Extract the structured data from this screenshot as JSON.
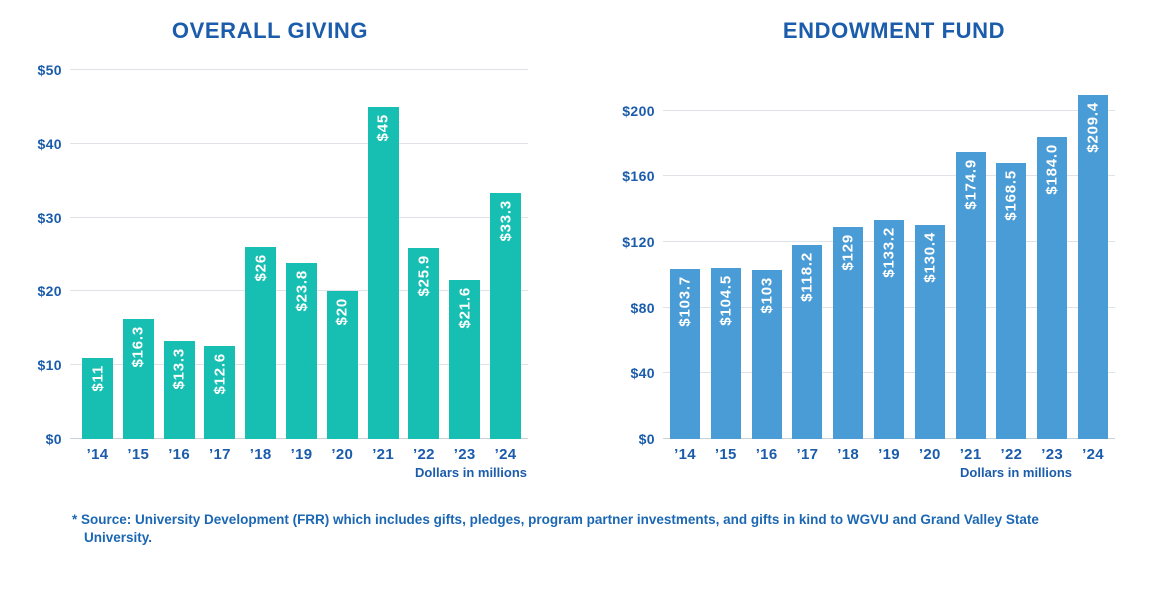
{
  "page": {
    "background": "#ffffff",
    "text_blue": "#1b5cab"
  },
  "footnote": {
    "text": "* Source: University Development (FRR) which includes gifts, pledges, program partner investments, and gifts in kind to WGVU and Grand Valley State University.",
    "color": "#1b67b3"
  },
  "chart_data": [
    {
      "type": "bar",
      "title": "OVERALL GIVING",
      "categories": [
        "’14",
        "’15",
        "’16",
        "’17",
        "’18",
        "’19",
        "’20",
        "’21",
        "’22",
        "’23",
        "’24"
      ],
      "values": [
        11,
        16.3,
        13.3,
        12.6,
        26,
        23.8,
        20,
        45,
        25.9,
        21.6,
        33.3
      ],
      "labels": [
        "$11",
        "$16.3",
        "$13.3",
        "$12.6",
        "$26",
        "$23.8",
        "$20",
        "$45",
        "$25.9",
        "$21.6",
        "$33.3"
      ],
      "yticks": {
        "labels": [
          "$0",
          "$10",
          "$20",
          "$30",
          "$40",
          "$50"
        ],
        "values": [
          0,
          10,
          20,
          30,
          40,
          50
        ]
      },
      "ylim": [
        0,
        50
      ],
      "xlabel": "",
      "ylabel": "",
      "xlabel_note": "Dollars in millions",
      "bar_color": "#17bfb3",
      "title_color": "#1b5cab",
      "value_label_color": "#ffffff",
      "grid": true,
      "legend": "none"
    },
    {
      "type": "bar",
      "title": "ENDOWMENT FUND",
      "categories": [
        "’14",
        "’15",
        "’16",
        "’17",
        "’18",
        "’19",
        "’20",
        "’21",
        "’22",
        "’23",
        "’24"
      ],
      "values": [
        103.7,
        104.5,
        103,
        118.2,
        129,
        133.2,
        130.4,
        174.9,
        168.5,
        184.0,
        209.4
      ],
      "labels": [
        "$103.7",
        "$104.5",
        "$103",
        "$118.2",
        "$129",
        "$133.2",
        "$130.4",
        "$174.9",
        "$168.5",
        "$184.0",
        "$209.4"
      ],
      "yticks": {
        "labels": [
          "$0",
          "$40",
          "$80",
          "$120",
          "$160",
          "$200"
        ],
        "values": [
          0,
          40,
          80,
          120,
          160,
          200
        ]
      },
      "ylim": [
        0,
        200
      ],
      "xlabel": "",
      "ylabel": "",
      "xlabel_note": "Dollars in millions",
      "bar_color": "#4a9cd6",
      "title_color": "#1b5cab",
      "value_label_color": "#ffffff",
      "grid": true,
      "legend": "none"
    }
  ]
}
